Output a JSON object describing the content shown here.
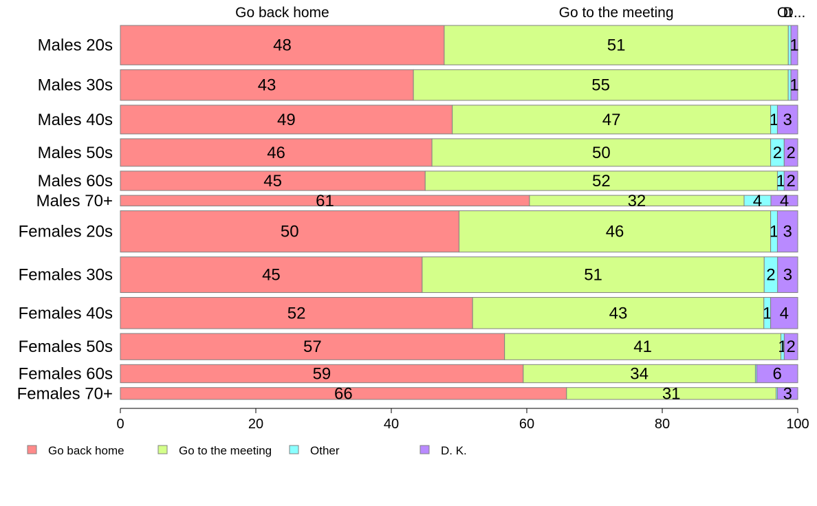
{
  "chart_data": {
    "type": "bar",
    "orientation": "horizontal",
    "stacked": true,
    "variable_width": true,
    "categories": [
      "Males 20s",
      "Males 30s",
      "Males 40s",
      "Males 50s",
      "Males 60s",
      "Males 70+",
      "Females 20s",
      "Females 30s",
      "Females 40s",
      "Females 50s",
      "Females 60s",
      "Females 70+"
    ],
    "series": [
      {
        "name": "Go back home",
        "color": "#ff8a8a",
        "values": [
          48,
          43,
          49,
          46,
          45,
          61,
          50,
          45,
          52,
          57,
          59,
          66
        ]
      },
      {
        "name": "Go to the meeting",
        "color": "#d4ff8a",
        "values": [
          51,
          55,
          47,
          50,
          52,
          32,
          46,
          51,
          43,
          41,
          34,
          31
        ]
      },
      {
        "name": "Other",
        "color": "#8affff",
        "values": [
          0.4,
          0.4,
          1,
          2,
          1,
          4,
          1,
          2,
          1,
          0.5,
          0.2,
          0.2
        ]
      },
      {
        "name": "D. K.",
        "color": "#b98aff",
        "values": [
          1,
          1,
          3,
          2,
          2,
          4,
          3,
          3,
          4,
          2,
          6,
          3
        ]
      }
    ],
    "segment_labels": [
      [
        "48",
        "51",
        "",
        "1"
      ],
      [
        "43",
        "55",
        "",
        "1"
      ],
      [
        "49",
        "47",
        "1",
        "3"
      ],
      [
        "46",
        "50",
        "2",
        "2"
      ],
      [
        "45",
        "52",
        "1",
        "2"
      ],
      [
        "61",
        "32",
        "4",
        "4"
      ],
      [
        "50",
        "46",
        "1",
        "3"
      ],
      [
        "45",
        "51",
        "2",
        "3"
      ],
      [
        "52",
        "43",
        "1",
        "4"
      ],
      [
        "57",
        "41",
        "1",
        "2"
      ],
      [
        "59",
        "34",
        "",
        "6"
      ],
      [
        "66",
        "31",
        "",
        "3"
      ]
    ],
    "row_weights": [
      6.3,
      4.9,
      4.6,
      4.4,
      3.1,
      1.7,
      6.6,
      5.7,
      5.0,
      4.2,
      2.9,
      1.9
    ],
    "top_labels": [
      "Go back home",
      "Go to the meeting",
      "Ot",
      "D..."
    ],
    "xlim": [
      0,
      100
    ],
    "xticks": [
      0,
      20,
      40,
      60,
      80,
      100
    ],
    "grid": false,
    "legend_position": "bottom",
    "legend": [
      "Go back home",
      "Go to the meeting",
      "Other",
      "D. K."
    ],
    "title": "",
    "xlabel": "",
    "ylabel": ""
  }
}
